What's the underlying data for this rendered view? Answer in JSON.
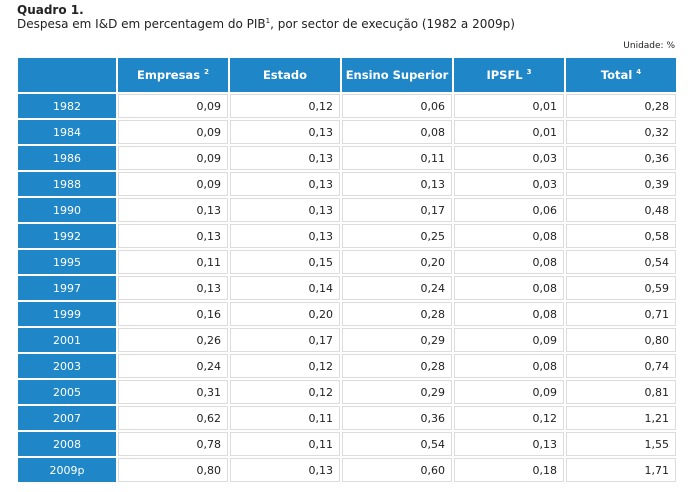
{
  "header": {
    "title": "Quadro 1.",
    "subtitle": {
      "before": "Despesa em I&D em percentagem do PIB",
      "note": "1",
      "after": ", por sector de execução (1982 a 2009p)"
    },
    "unit": "Unidade: %"
  },
  "table": {
    "columns": [
      {
        "label": "Empresas",
        "note": "2"
      },
      {
        "label": "Estado"
      },
      {
        "label": "Ensino Superior"
      },
      {
        "label": "IPSFL",
        "note": "3"
      },
      {
        "label": "Total",
        "note": "4"
      }
    ],
    "rows": [
      [
        "1982",
        "0,09",
        "0,12",
        "0,06",
        "0,01",
        "0,28"
      ],
      [
        "1984",
        "0,09",
        "0,13",
        "0,08",
        "0,01",
        "0,32"
      ],
      [
        "1986",
        "0,09",
        "0,13",
        "0,11",
        "0,03",
        "0,36"
      ],
      [
        "1988",
        "0,09",
        "0,13",
        "0,13",
        "0,03",
        "0,39"
      ],
      [
        "1990",
        "0,13",
        "0,13",
        "0,17",
        "0,06",
        "0,48"
      ],
      [
        "1992",
        "0,13",
        "0,13",
        "0,25",
        "0,08",
        "0,58"
      ],
      [
        "1995",
        "0,11",
        "0,15",
        "0,20",
        "0,08",
        "0,54"
      ],
      [
        "1997",
        "0,13",
        "0,14",
        "0,24",
        "0,08",
        "0,59"
      ],
      [
        "1999",
        "0,16",
        "0,20",
        "0,28",
        "0,08",
        "0,71"
      ],
      [
        "2001",
        "0,26",
        "0,17",
        "0,29",
        "0,09",
        "0,80"
      ],
      [
        "2003",
        "0,24",
        "0,12",
        "0,28",
        "0,08",
        "0,74"
      ],
      [
        "2005",
        "0,31",
        "0,12",
        "0,29",
        "0,09",
        "0,81"
      ],
      [
        "2007",
        "0,62",
        "0,11",
        "0,36",
        "0,12",
        "1,21"
      ],
      [
        "2008",
        "0,78",
        "0,11",
        "0,54",
        "0,13",
        "1,55"
      ],
      [
        "2009p",
        "0,80",
        "0,13",
        "0,60",
        "0,18",
        "1,71"
      ]
    ]
  }
}
